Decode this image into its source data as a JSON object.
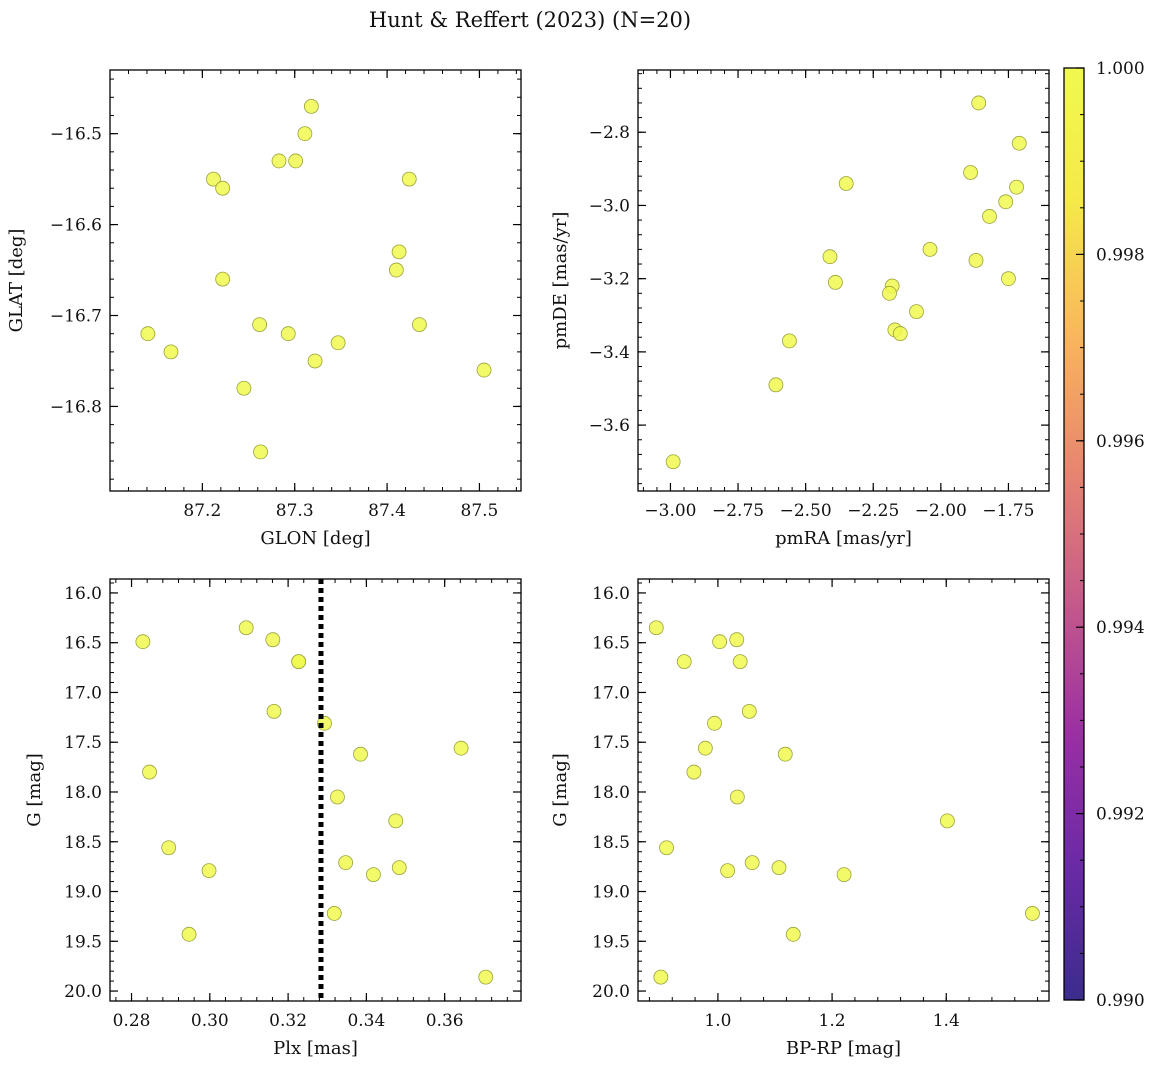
{
  "figure": {
    "title": "Hunt & Reffert (2023) (N=20)",
    "point_color": "#f0f94f",
    "point_edge": "#9aa23a",
    "vline_color": "#000000"
  },
  "colorbar": {
    "min": 0.99,
    "max": 1.0,
    "ticks": [
      "0.990",
      "0.992",
      "0.994",
      "0.996",
      "0.998",
      "1.000"
    ],
    "colormap": "plasma",
    "stops": [
      "#3b2c8c",
      "#6a2aa6",
      "#9a2fa3",
      "#c65a8a",
      "#e8866f",
      "#f9b75b",
      "#f5e94a",
      "#f0f94f"
    ]
  },
  "chart_data": [
    {
      "type": "scatter",
      "xlabel": "GLON [deg]",
      "ylabel": "GLAT [deg]",
      "xlim": [
        87.1,
        87.545
      ],
      "ylim": [
        -16.893,
        -16.43
      ],
      "xticks": [
        87.2,
        87.3,
        87.4,
        87.5
      ],
      "xtick_labels": [
        "87.2",
        "87.3",
        "87.4",
        "87.5"
      ],
      "yticks": [
        -16.5,
        -16.6,
        -16.7,
        -16.8
      ],
      "ytick_labels": [
        "−16.5",
        "−16.6",
        "−16.7",
        "−16.8"
      ],
      "x": [
        87.318,
        87.311,
        87.283,
        87.301,
        87.212,
        87.222,
        87.424,
        87.413,
        87.41,
        87.222,
        87.141,
        87.166,
        87.262,
        87.293,
        87.347,
        87.322,
        87.435,
        87.245,
        87.505,
        87.263
      ],
      "y": [
        -16.47,
        -16.5,
        -16.53,
        -16.53,
        -16.55,
        -16.56,
        -16.55,
        -16.63,
        -16.65,
        -16.66,
        -16.72,
        -16.74,
        -16.71,
        -16.72,
        -16.73,
        -16.75,
        -16.71,
        -16.78,
        -16.76,
        -16.85
      ],
      "vline": null
    },
    {
      "type": "scatter",
      "xlabel": "pmRA [mas/yr]",
      "ylabel": "pmDE [mas/yr]",
      "xlim": [
        -3.12,
        -1.6
      ],
      "ylim": [
        -3.78,
        -2.63
      ],
      "xticks": [
        -3.0,
        -2.75,
        -2.5,
        -2.25,
        -2.0,
        -1.75
      ],
      "xtick_labels": [
        "−3.00",
        "−2.75",
        "−2.50",
        "−2.25",
        "−2.00",
        "−1.75"
      ],
      "yticks": [
        -2.8,
        -3.0,
        -3.2,
        -3.4,
        -3.6
      ],
      "ytick_labels": [
        "−2.8",
        "−3.0",
        "−3.2",
        "−3.4",
        "−3.6"
      ],
      "x": [
        -1.86,
        -1.71,
        -1.89,
        -1.72,
        -1.76,
        -2.35,
        -1.82,
        -2.04,
        -2.41,
        -1.87,
        -1.75,
        -2.39,
        -2.18,
        -2.19,
        -2.09,
        -2.17,
        -2.15,
        -2.56,
        -2.61,
        -2.99
      ],
      "y": [
        -2.72,
        -2.83,
        -2.91,
        -2.95,
        -2.99,
        -2.94,
        -3.03,
        -3.12,
        -3.14,
        -3.15,
        -3.2,
        -3.21,
        -3.22,
        -3.24,
        -3.29,
        -3.34,
        -3.35,
        -3.37,
        -3.49,
        -3.7
      ],
      "vline": null
    },
    {
      "type": "scatter",
      "xlabel": "Plx [mas]",
      "ylabel": "G [mag]",
      "xlim": [
        0.2745,
        0.3795
      ],
      "ylim": [
        20.1,
        15.86
      ],
      "xticks": [
        0.28,
        0.3,
        0.32,
        0.34,
        0.36
      ],
      "xtick_labels": [
        "0.28",
        "0.30",
        "0.32",
        "0.34",
        "0.36"
      ],
      "yticks": [
        16.0,
        16.5,
        17.0,
        17.5,
        18.0,
        18.5,
        19.0,
        19.5,
        20.0
      ],
      "ytick_labels": [
        "16.0",
        "16.5",
        "17.0",
        "17.5",
        "18.0",
        "18.5",
        "19.0",
        "19.5",
        "20.0"
      ],
      "x": [
        0.2829,
        0.3093,
        0.3161,
        0.3227,
        0.3227,
        0.3164,
        0.3293,
        0.3385,
        0.3642,
        0.2846,
        0.3326,
        0.3475,
        0.2895,
        0.3347,
        0.3484,
        0.2998,
        0.3418,
        0.3318,
        0.2947,
        0.3705
      ],
      "y": [
        16.49,
        16.35,
        16.47,
        16.69,
        16.69,
        17.19,
        17.31,
        17.62,
        17.56,
        17.8,
        18.05,
        18.29,
        18.56,
        18.71,
        18.76,
        18.79,
        18.83,
        19.22,
        19.43,
        19.86
      ],
      "vline": 0.3284
    },
    {
      "type": "scatter",
      "xlabel": "BP-RP [mag]",
      "ylabel": "G [mag]",
      "xlim": [
        0.86,
        1.58
      ],
      "ylim": [
        20.1,
        15.86
      ],
      "xticks": [
        1.0,
        1.2,
        1.4
      ],
      "xtick_labels": [
        "1.0",
        "1.2",
        "1.4"
      ],
      "yticks": [
        16.0,
        16.5,
        17.0,
        17.5,
        18.0,
        18.5,
        19.0,
        19.5,
        20.0
      ],
      "ytick_labels": [
        "16.0",
        "16.5",
        "17.0",
        "17.5",
        "18.0",
        "18.5",
        "19.0",
        "19.5",
        "20.0"
      ],
      "x": [
        0.892,
        1.003,
        1.033,
        0.941,
        1.039,
        1.055,
        0.994,
        1.118,
        0.978,
        0.958,
        1.034,
        1.402,
        0.91,
        1.06,
        1.107,
        1.017,
        1.221,
        1.551,
        1.132,
        0.9
      ],
      "y": [
        16.35,
        16.49,
        16.47,
        16.69,
        16.69,
        17.19,
        17.31,
        17.62,
        17.56,
        17.8,
        18.05,
        18.29,
        18.56,
        18.71,
        18.76,
        18.79,
        18.83,
        19.22,
        19.43,
        19.86
      ],
      "vline": null
    }
  ]
}
